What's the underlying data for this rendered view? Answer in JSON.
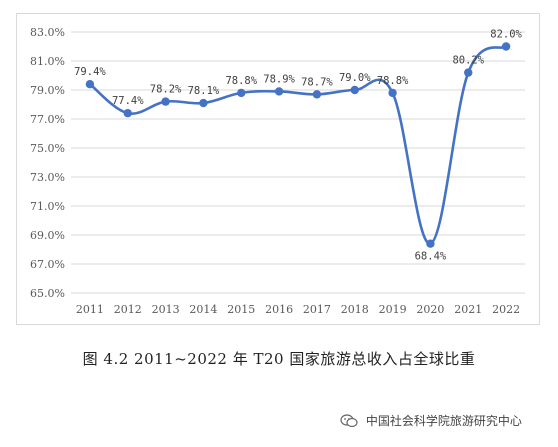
{
  "chart_data": {
    "type": "line",
    "x": [
      "2011",
      "2012",
      "2013",
      "2014",
      "2015",
      "2016",
      "2017",
      "2018",
      "2019",
      "2020",
      "2021",
      "2022"
    ],
    "series": [
      {
        "values": [
          79.4,
          77.4,
          78.2,
          78.1,
          78.8,
          78.9,
          78.7,
          79.0,
          78.8,
          68.4,
          80.2,
          82.0
        ]
      }
    ],
    "data_labels": [
      "79.4%",
      "77.4%",
      "78.2%",
      "78.1%",
      "78.8%",
      "78.9%",
      "78.7%",
      "79.0%",
      "78.8%",
      "68.4%",
      "80.2%",
      "82.0%"
    ],
    "yticks": [
      "65.0%",
      "67.0%",
      "69.0%",
      "71.0%",
      "73.0%",
      "75.0%",
      "77.0%",
      "79.0%",
      "81.0%",
      "83.0%"
    ],
    "ylim": [
      65.0,
      83.0
    ],
    "grid": true,
    "line_color": "#4472c4",
    "grid_color": "#d9d9d9"
  },
  "caption": "图 4.2    2011~2022 年 T20 国家旅游总收入占全球比重",
  "watermark": "中国社会科学院旅游研究中心"
}
